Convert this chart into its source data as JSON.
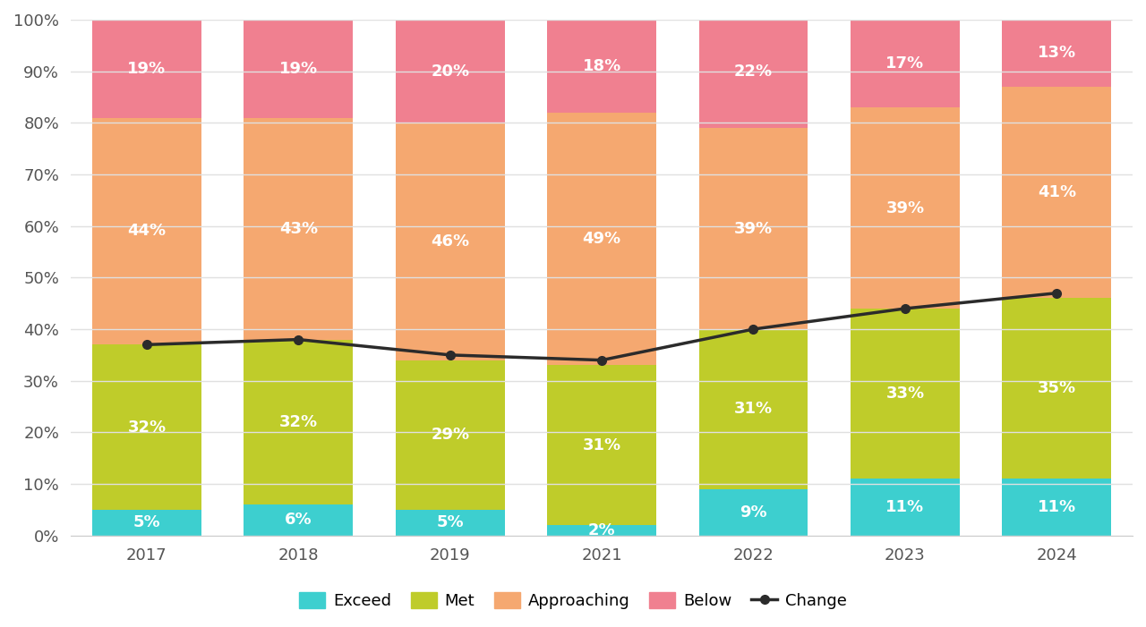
{
  "years": [
    "2017",
    "2018",
    "2019",
    "2021",
    "2022",
    "2023",
    "2024"
  ],
  "exceed": [
    5,
    6,
    5,
    2,
    9,
    11,
    11
  ],
  "met": [
    32,
    32,
    29,
    31,
    31,
    33,
    35
  ],
  "approaching": [
    44,
    43,
    46,
    49,
    39,
    39,
    41
  ],
  "below": [
    19,
    19,
    20,
    18,
    22,
    17,
    13
  ],
  "change_line": [
    37,
    38,
    35,
    34,
    40,
    44,
    47
  ],
  "colors": {
    "exceed": "#3DCFCF",
    "met": "#BFCC2A",
    "approaching": "#F5A870",
    "below": "#F08090",
    "change_line": "#2B2B2B"
  },
  "background_color": "#FFFFFF",
  "plot_bg_color": "#FFFFFF",
  "grid_color": "#E0E0E0",
  "ylim": [
    0,
    100
  ],
  "yticks": [
    0,
    10,
    20,
    30,
    40,
    50,
    60,
    70,
    80,
    90,
    100
  ],
  "ytick_labels": [
    "0%",
    "10%",
    "20%",
    "30%",
    "40%",
    "50%",
    "60%",
    "70%",
    "80%",
    "90%",
    "100%"
  ],
  "bar_width": 0.72,
  "label_fontsize": 13,
  "tick_fontsize": 13,
  "legend_fontsize": 13
}
